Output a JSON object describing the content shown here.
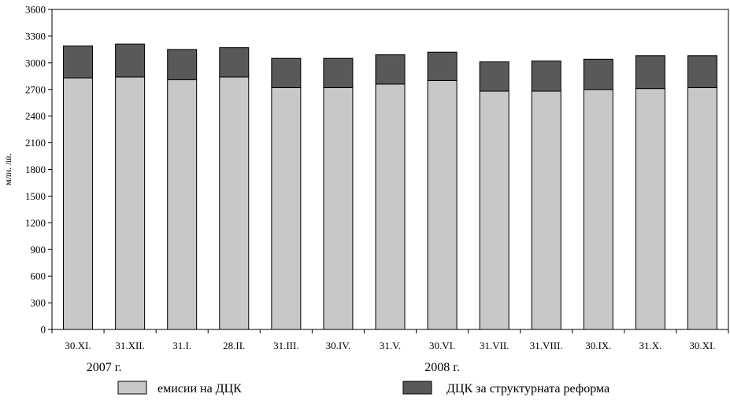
{
  "chart_data": {
    "type": "bar",
    "stacked": true,
    "categories": [
      "30.XI.",
      "31.XII.",
      "31.I.",
      "28.II.",
      "31.III.",
      "30.IV.",
      "31.V.",
      "30.VI.",
      "31.VII.",
      "31.VIII.",
      "30.IX.",
      "31.X.",
      "30.XI."
    ],
    "series": [
      {
        "name": "емисии на ДЦК",
        "color": "#c8c8c8",
        "values": [
          2830,
          2840,
          2810,
          2840,
          2720,
          2720,
          2760,
          2800,
          2680,
          2680,
          2700,
          2710,
          2720
        ]
      },
      {
        "name": "ДЦК за структурната реформа",
        "color": "#595959",
        "values": [
          360,
          370,
          340,
          330,
          330,
          330,
          330,
          320,
          330,
          340,
          340,
          370,
          360
        ]
      }
    ],
    "ylabel": "млн. лв.",
    "ylim": [
      0,
      3600
    ],
    "yticks": [
      0,
      300,
      600,
      900,
      1200,
      1500,
      1800,
      2100,
      2400,
      2700,
      3000,
      3300,
      3600
    ],
    "year_labels": [
      {
        "text": "2007 г.",
        "category_index": 0.5
      },
      {
        "text": "2008 г.",
        "category_index": 7
      }
    ],
    "grid": false,
    "legend_position": "bottom"
  }
}
